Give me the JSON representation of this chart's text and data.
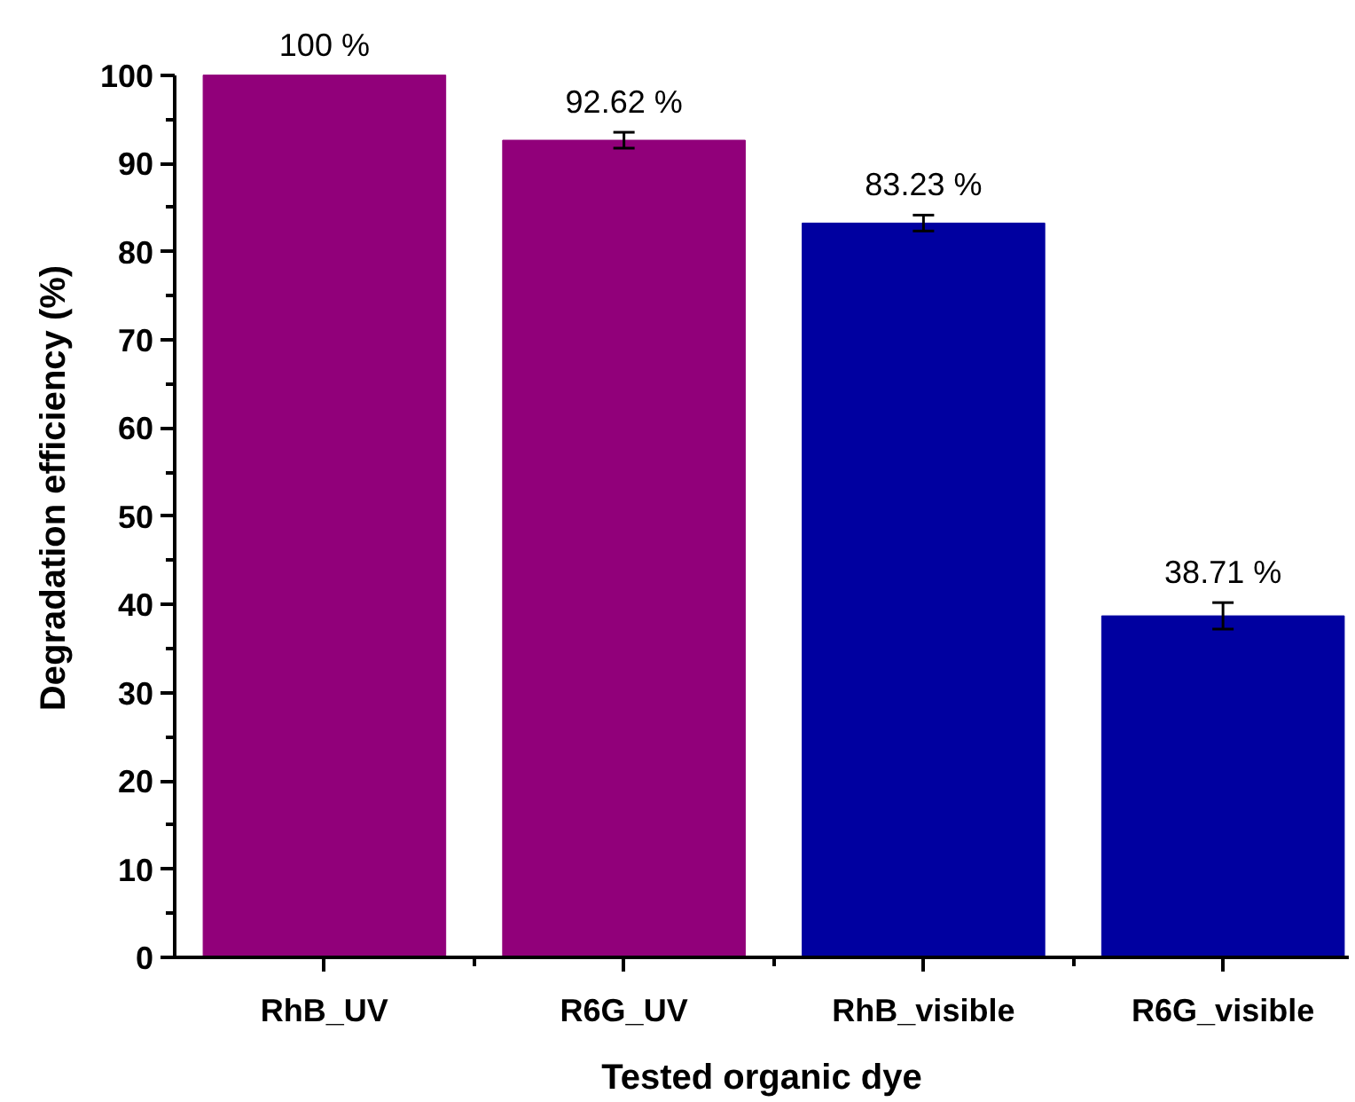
{
  "chart_data": {
    "type": "bar",
    "xlabel": "Tested organic dye",
    "ylabel": "Degradation efficiency (%)",
    "categories": [
      "RhB_UV",
      "R6G_UV",
      "RhB_visible",
      "R6G_visible"
    ],
    "values": [
      100,
      92.62,
      83.23,
      38.71
    ],
    "colors": [
      "#91007a",
      "#91007a",
      "#0000a0",
      "#0000a0"
    ],
    "errors": [
      null,
      0.9,
      0.9,
      1.5
    ],
    "value_labels": [
      "100 %",
      "92.62 %",
      "83.23 %",
      "38.71 %"
    ],
    "ylim": [
      0,
      100
    ],
    "yticks": [
      0,
      10,
      20,
      30,
      40,
      50,
      60,
      70,
      80,
      90,
      100
    ]
  }
}
